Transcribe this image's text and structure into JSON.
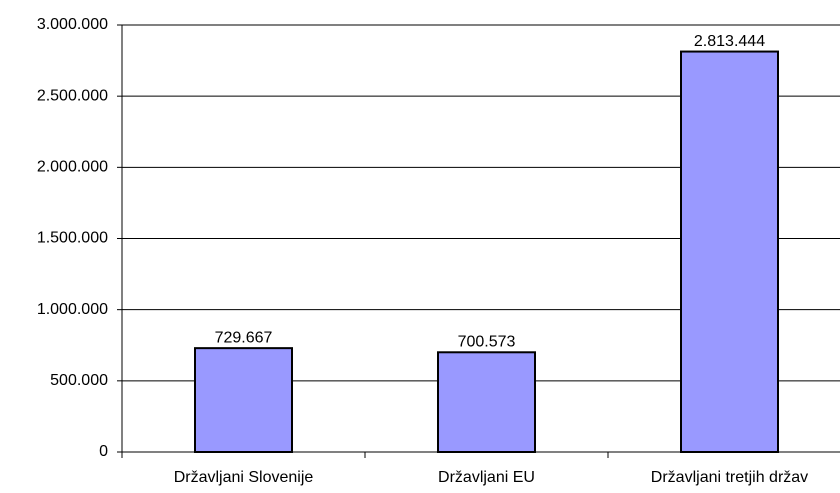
{
  "chart_data": {
    "type": "bar",
    "categories": [
      "Državljani Slovenije",
      "Državljani EU",
      "Državljani tretjih držav"
    ],
    "values": [
      729667,
      700573,
      2813444
    ],
    "value_labels": [
      "729.667",
      "700.573",
      "2.813.444"
    ],
    "color": "#9999ff",
    "ylim": [
      0,
      3000000
    ],
    "yticks": [
      0,
      {
        "value": 500000,
        "label": "500.000"
      },
      {
        "value": 1000000,
        "label": "1.000.000"
      },
      {
        "value": 1500000,
        "label": "1.500.000"
      },
      {
        "value": 2000000,
        "label": "2.000.000"
      },
      {
        "value": 2500000,
        "label": "2.500.000"
      },
      {
        "value": 3000000,
        "label": "3.000.000"
      }
    ],
    "grid": true
  }
}
